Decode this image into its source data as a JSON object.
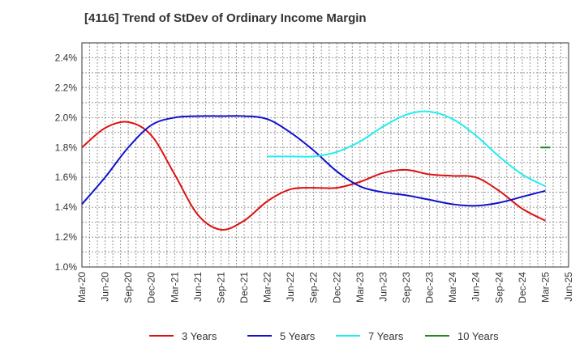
{
  "chart_data": {
    "type": "line",
    "title": "[4116]  Trend of StDev of Ordinary Income Margin",
    "categories": [
      "Mar-20",
      "Jun-20",
      "Sep-20",
      "Dec-20",
      "Mar-21",
      "Jun-21",
      "Sep-21",
      "Dec-21",
      "Mar-22",
      "Jun-22",
      "Sep-22",
      "Dec-22",
      "Mar-23",
      "Jun-23",
      "Sep-23",
      "Dec-23",
      "Mar-24",
      "Jun-24",
      "Sep-24",
      "Dec-24",
      "Mar-25",
      "Jun-25"
    ],
    "y_ticks": [
      "1.0%",
      "1.2%",
      "1.4%",
      "1.6%",
      "1.8%",
      "2.0%",
      "2.2%",
      "2.4%"
    ],
    "ylim": [
      1.0,
      2.5
    ],
    "y_unit": "%",
    "grid": true,
    "legend_position": "bottom",
    "series": [
      {
        "name": "3 Years",
        "color": "#dd1111",
        "values": [
          1.8,
          1.93,
          1.97,
          1.88,
          1.62,
          1.35,
          1.25,
          1.31,
          1.44,
          1.52,
          1.53,
          1.53,
          1.57,
          1.63,
          1.65,
          1.62,
          1.61,
          1.6,
          1.51,
          1.39,
          1.31,
          null
        ]
      },
      {
        "name": "5 Years",
        "color": "#1111cc",
        "values": [
          1.42,
          1.6,
          1.8,
          1.95,
          2.0,
          2.01,
          2.01,
          2.01,
          1.99,
          1.9,
          1.78,
          1.64,
          1.54,
          1.5,
          1.48,
          1.45,
          1.42,
          1.41,
          1.43,
          1.47,
          1.51,
          null
        ]
      },
      {
        "name": "7 Years",
        "color": "#22eeee",
        "values": [
          null,
          null,
          null,
          null,
          null,
          null,
          null,
          null,
          1.74,
          1.74,
          1.74,
          1.77,
          1.84,
          1.94,
          2.02,
          2.04,
          1.99,
          1.88,
          1.74,
          1.62,
          1.54,
          null
        ]
      },
      {
        "name": "10 Years",
        "color": "#228822",
        "values": [
          null,
          null,
          null,
          null,
          null,
          null,
          null,
          null,
          null,
          null,
          null,
          null,
          null,
          null,
          null,
          null,
          null,
          null,
          null,
          null,
          1.8,
          null
        ]
      }
    ]
  }
}
